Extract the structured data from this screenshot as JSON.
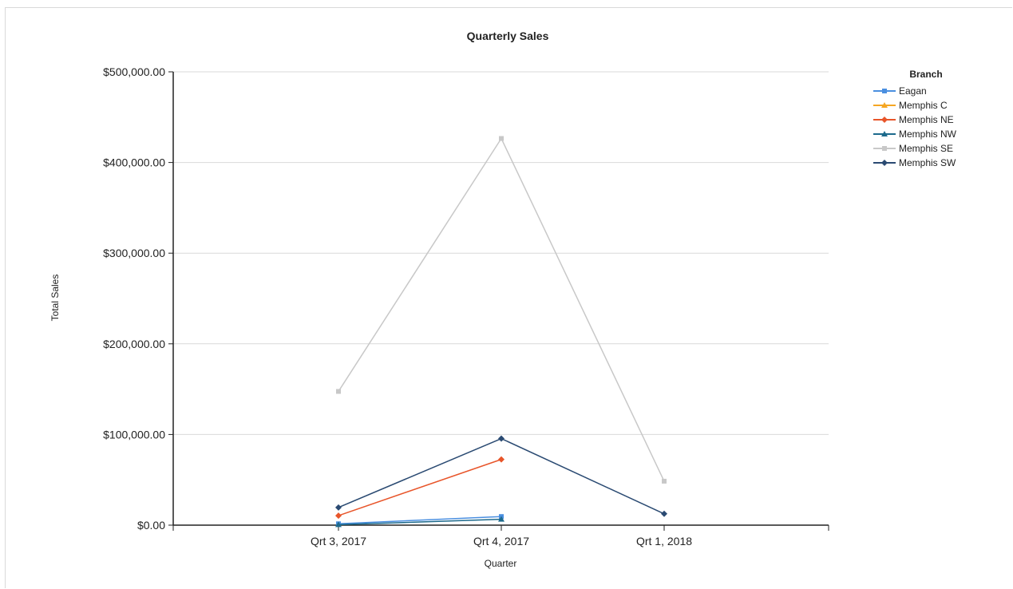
{
  "chart_data": {
    "type": "line",
    "title": "Quarterly Sales",
    "xlabel": "Quarter",
    "ylabel": "Total Sales",
    "categories": [
      "Qrt 3, 2017",
      "Qrt 4, 2017",
      "Qrt 1, 2018"
    ],
    "ylim": [
      0,
      500000
    ],
    "yticks": [
      0,
      100000,
      200000,
      300000,
      400000,
      500000
    ],
    "ytick_labels": [
      "$0.00",
      "$100,000.00",
      "$200,000.00",
      "$300,000.00",
      "$400,000.00",
      "$500,000.00"
    ],
    "grid": true,
    "legend": {
      "title": "Branch",
      "placement": "right"
    },
    "series": [
      {
        "name": "Eagan",
        "color": "#4a8fe0",
        "marker": "square",
        "values": [
          1500,
          9500,
          null
        ]
      },
      {
        "name": "Memphis C",
        "color": "#f5a623",
        "marker": "triangle",
        "values": [
          null,
          null,
          null
        ]
      },
      {
        "name": "Memphis NE",
        "color": "#e8552a",
        "marker": "diamond",
        "values": [
          10500,
          72500,
          null
        ]
      },
      {
        "name": "Memphis NW",
        "color": "#1d6a8c",
        "marker": "triangle",
        "values": [
          500,
          6500,
          null
        ]
      },
      {
        "name": "Memphis SE",
        "color": "#c8c8c8",
        "marker": "square",
        "values": [
          147500,
          426500,
          48500
        ]
      },
      {
        "name": "Memphis SW",
        "color": "#2a4a72",
        "marker": "diamond",
        "values": [
          19500,
          95500,
          12500
        ]
      }
    ]
  }
}
